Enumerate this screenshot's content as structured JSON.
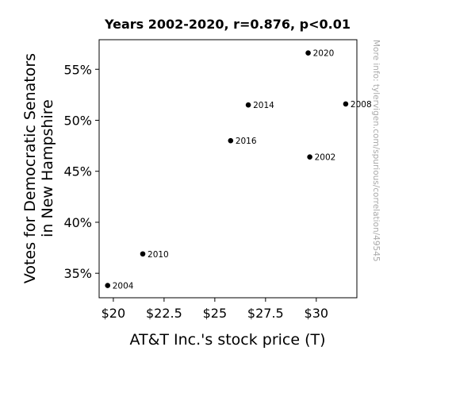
{
  "chart_data": {
    "type": "scatter",
    "title": "Years 2002-2020, r=0.876, p<0.01",
    "xlabel": "AT&T Inc.'s stock price (T)",
    "ylabel_lines": [
      "Votes for Democratic Senators",
      "in New Hampshire"
    ],
    "xlim": [
      19.3,
      32.0
    ],
    "ylim": [
      32.6,
      57.9
    ],
    "xticks": [
      {
        "value": 20,
        "label": "$20"
      },
      {
        "value": 22.5,
        "label": "$22.5"
      },
      {
        "value": 25,
        "label": "$25"
      },
      {
        "value": 27.5,
        "label": "$27.5"
      },
      {
        "value": 30,
        "label": "$30"
      }
    ],
    "yticks": [
      {
        "value": 35,
        "label": "35%"
      },
      {
        "value": 40,
        "label": "40%"
      },
      {
        "value": 45,
        "label": "45%"
      },
      {
        "value": 50,
        "label": "50%"
      },
      {
        "value": 55,
        "label": "55%"
      }
    ],
    "points": [
      {
        "label": "2002",
        "x": 29.68,
        "y": 46.4
      },
      {
        "label": "2004",
        "x": 19.72,
        "y": 33.8
      },
      {
        "label": "2008",
        "x": 31.45,
        "y": 51.6
      },
      {
        "label": "2010",
        "x": 21.45,
        "y": 36.9
      },
      {
        "label": "2014",
        "x": 26.65,
        "y": 51.5
      },
      {
        "label": "2016",
        "x": 25.78,
        "y": 48.0
      },
      {
        "label": "2020",
        "x": 29.6,
        "y": 56.6
      }
    ],
    "grid": false,
    "watermark": "More info: tylervigen.com/spurious/correlation/49545"
  }
}
